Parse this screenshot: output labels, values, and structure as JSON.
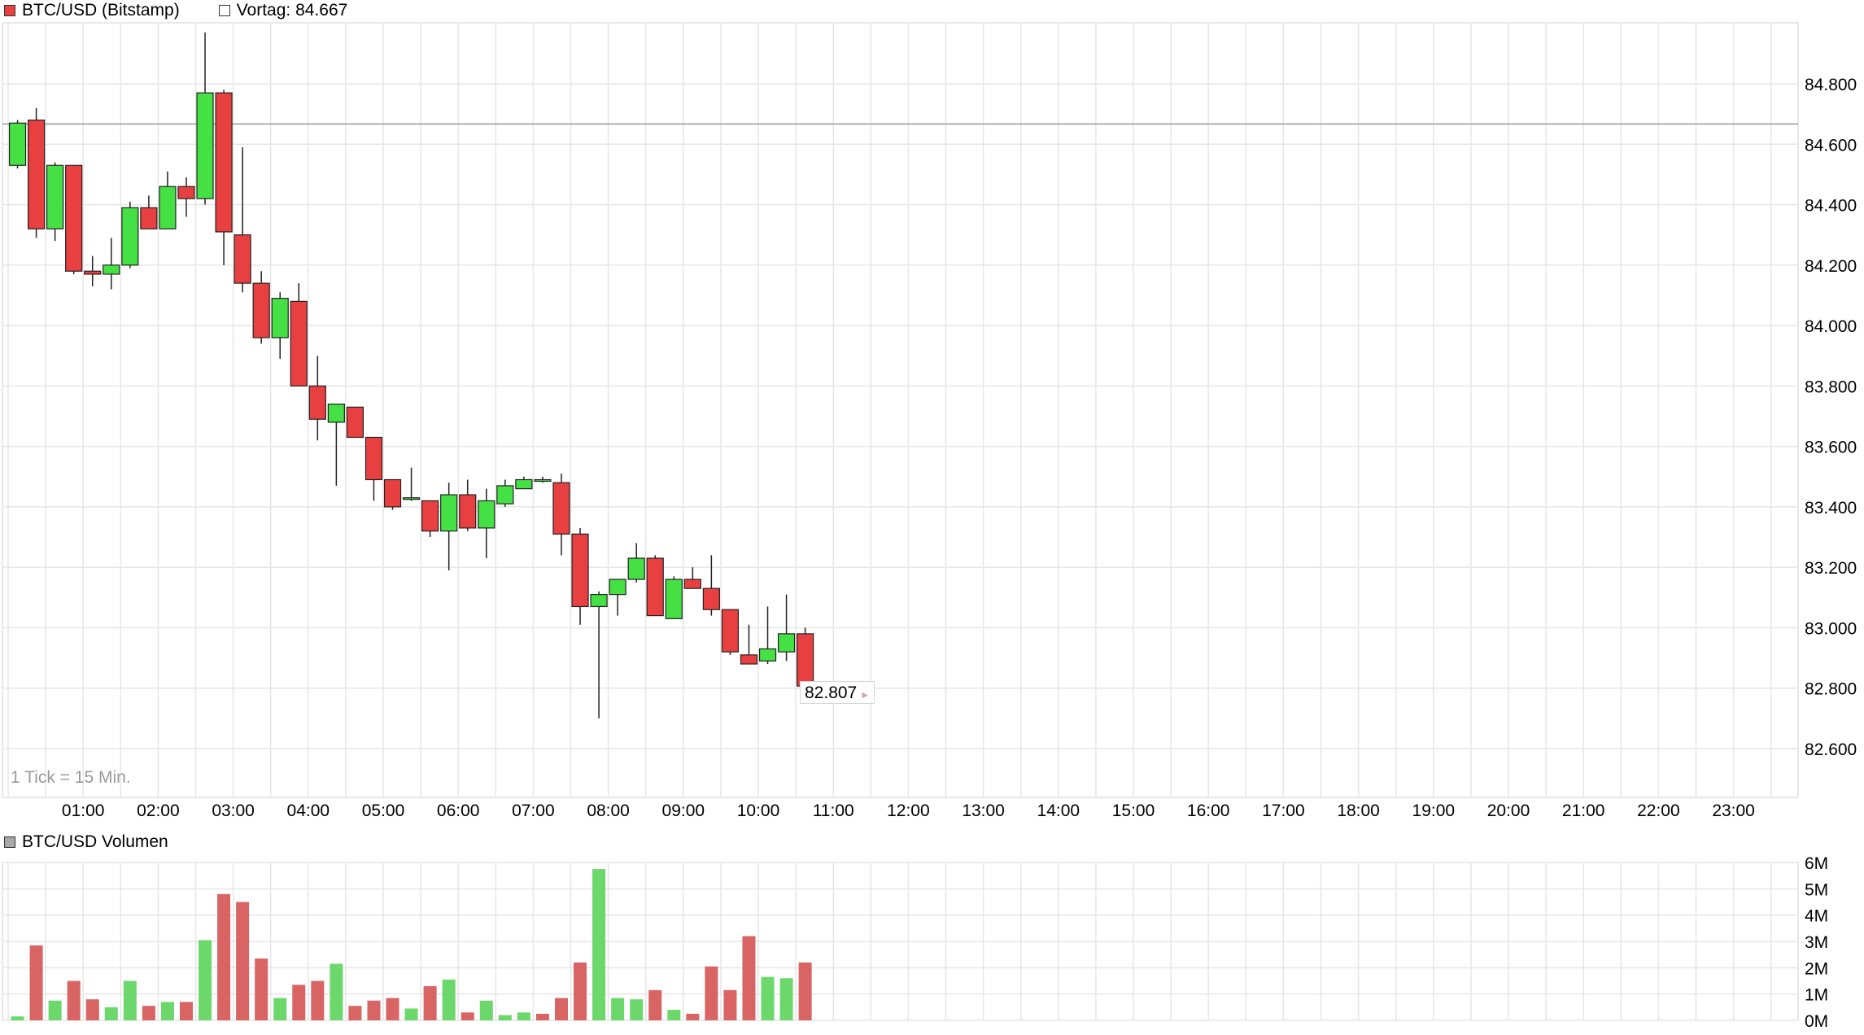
{
  "legend": {
    "series_label": "BTC/USD (Bitstamp)",
    "series_color": "#e84040",
    "prev_close_label": "Vortag: 84.667",
    "volume_label": "BTC/USD Volumen",
    "volume_swatch_color": "#a8a8a8"
  },
  "tick_note": "1 Tick = 15 Min.",
  "last_price_label": "82.807",
  "colors": {
    "up": "#44e044",
    "down": "#e84040",
    "volume_up": "#6cd86c",
    "volume_down": "#d86464",
    "grid": "#e6e6e6",
    "prev_close_line": "#999999"
  },
  "chart_data": [
    {
      "type": "candlestick",
      "name": "BTC/USD (Bitstamp)",
      "interval": "15 Min.",
      "prev_close": 84667,
      "last_price": 82807,
      "ylim": [
        82450,
        84990
      ],
      "y_ticks": [
        82600,
        82800,
        83000,
        83200,
        83400,
        83600,
        83800,
        84000,
        84200,
        84400,
        84600,
        84800
      ],
      "y_tick_labels": [
        "82.600",
        "82.800",
        "83.000",
        "83.200",
        "83.400",
        "83.600",
        "83.800",
        "84.000",
        "84.200",
        "84.400",
        "84.600",
        "84.800"
      ],
      "x_ticks": [
        "01:00",
        "02:00",
        "03:00",
        "04:00",
        "05:00",
        "06:00",
        "07:00",
        "08:00",
        "09:00",
        "10:00",
        "11:00",
        "12:00",
        "13:00",
        "14:00",
        "15:00",
        "16:00",
        "17:00",
        "18:00",
        "19:00",
        "20:00",
        "21:00",
        "22:00",
        "23:00"
      ],
      "x_range_hours": [
        0,
        24
      ],
      "grid": true,
      "candles": [
        {
          "t": "00:00",
          "o": 84530,
          "h": 84680,
          "l": 84520,
          "c": 84670
        },
        {
          "t": "00:15",
          "o": 84680,
          "h": 84720,
          "l": 84290,
          "c": 84320
        },
        {
          "t": "00:30",
          "o": 84320,
          "h": 84540,
          "l": 84280,
          "c": 84530
        },
        {
          "t": "00:45",
          "o": 84530,
          "h": 84530,
          "l": 84170,
          "c": 84180
        },
        {
          "t": "01:00",
          "o": 84180,
          "h": 84230,
          "l": 84130,
          "c": 84170
        },
        {
          "t": "01:15",
          "o": 84170,
          "h": 84290,
          "l": 84120,
          "c": 84200
        },
        {
          "t": "01:30",
          "o": 84200,
          "h": 84410,
          "l": 84190,
          "c": 84390
        },
        {
          "t": "01:45",
          "o": 84390,
          "h": 84430,
          "l": 84320,
          "c": 84320
        },
        {
          "t": "02:00",
          "o": 84320,
          "h": 84510,
          "l": 84320,
          "c": 84460
        },
        {
          "t": "02:15",
          "o": 84460,
          "h": 84490,
          "l": 84360,
          "c": 84420
        },
        {
          "t": "02:30",
          "o": 84420,
          "h": 84970,
          "l": 84400,
          "c": 84770
        },
        {
          "t": "02:45",
          "o": 84770,
          "h": 84780,
          "l": 84200,
          "c": 84310
        },
        {
          "t": "03:00",
          "o": 84300,
          "h": 84590,
          "l": 84110,
          "c": 84140
        },
        {
          "t": "03:15",
          "o": 84140,
          "h": 84180,
          "l": 83940,
          "c": 83960
        },
        {
          "t": "03:30",
          "o": 83960,
          "h": 84110,
          "l": 83890,
          "c": 84090
        },
        {
          "t": "03:45",
          "o": 84080,
          "h": 84140,
          "l": 83800,
          "c": 83800
        },
        {
          "t": "04:00",
          "o": 83800,
          "h": 83900,
          "l": 83620,
          "c": 83690
        },
        {
          "t": "04:15",
          "o": 83680,
          "h": 83740,
          "l": 83470,
          "c": 83740
        },
        {
          "t": "04:30",
          "o": 83730,
          "h": 83730,
          "l": 83630,
          "c": 83630
        },
        {
          "t": "04:45",
          "o": 83630,
          "h": 83630,
          "l": 83420,
          "c": 83490
        },
        {
          "t": "05:00",
          "o": 83490,
          "h": 83490,
          "l": 83390,
          "c": 83400
        },
        {
          "t": "05:15",
          "o": 83430,
          "h": 83530,
          "l": 83420,
          "c": 83430
        },
        {
          "t": "05:30",
          "o": 83420,
          "h": 83420,
          "l": 83300,
          "c": 83320
        },
        {
          "t": "05:45",
          "o": 83320,
          "h": 83480,
          "l": 83190,
          "c": 83440
        },
        {
          "t": "06:00",
          "o": 83440,
          "h": 83490,
          "l": 83320,
          "c": 83330
        },
        {
          "t": "06:15",
          "o": 83330,
          "h": 83460,
          "l": 83230,
          "c": 83420
        },
        {
          "t": "06:30",
          "o": 83410,
          "h": 83490,
          "l": 83400,
          "c": 83470
        },
        {
          "t": "06:45",
          "o": 83460,
          "h": 83500,
          "l": 83460,
          "c": 83490
        },
        {
          "t": "07:00",
          "o": 83490,
          "h": 83500,
          "l": 83480,
          "c": 83490
        },
        {
          "t": "07:15",
          "o": 83480,
          "h": 83510,
          "l": 83240,
          "c": 83310
        },
        {
          "t": "07:30",
          "o": 83310,
          "h": 83330,
          "l": 83010,
          "c": 83070
        },
        {
          "t": "07:45",
          "o": 83070,
          "h": 83120,
          "l": 82700,
          "c": 83110
        },
        {
          "t": "08:00",
          "o": 83110,
          "h": 83160,
          "l": 83040,
          "c": 83160
        },
        {
          "t": "08:15",
          "o": 83160,
          "h": 83280,
          "l": 83150,
          "c": 83230
        },
        {
          "t": "08:30",
          "o": 83230,
          "h": 83240,
          "l": 83040,
          "c": 83040
        },
        {
          "t": "08:45",
          "o": 83030,
          "h": 83170,
          "l": 83030,
          "c": 83160
        },
        {
          "t": "09:00",
          "o": 83160,
          "h": 83200,
          "l": 83130,
          "c": 83130
        },
        {
          "t": "09:15",
          "o": 83130,
          "h": 83240,
          "l": 83040,
          "c": 83060
        },
        {
          "t": "09:30",
          "o": 83060,
          "h": 83060,
          "l": 82910,
          "c": 82920
        },
        {
          "t": "09:45",
          "o": 82910,
          "h": 83010,
          "l": 82880,
          "c": 82880
        },
        {
          "t": "10:00",
          "o": 82890,
          "h": 83070,
          "l": 82880,
          "c": 82930
        },
        {
          "t": "10:15",
          "o": 82920,
          "h": 83110,
          "l": 82890,
          "c": 82980
        },
        {
          "t": "10:30",
          "o": 82980,
          "h": 83000,
          "l": 82780,
          "c": 82807
        }
      ]
    },
    {
      "type": "bar",
      "name": "BTC/USD Volumen",
      "unit": "M",
      "ylim": [
        0,
        6
      ],
      "y_ticks": [
        0,
        1,
        2,
        3,
        4,
        5,
        6
      ],
      "y_tick_labels": [
        "0M",
        "1M",
        "2M",
        "3M",
        "4M",
        "5M",
        "6M"
      ],
      "x_ticks": [
        "01:00",
        "02:00",
        "03:00",
        "04:00",
        "05:00",
        "06:00",
        "07:00",
        "08:00",
        "09:00",
        "10:00",
        "11:00",
        "12:00",
        "13:00",
        "14:00",
        "15:00",
        "16:00",
        "17:00",
        "18:00",
        "19:00",
        "20:00",
        "21:00",
        "22:00",
        "23:00"
      ],
      "grid": true,
      "values": [
        0.15,
        2.85,
        0.75,
        1.5,
        0.8,
        0.5,
        1.5,
        0.55,
        0.7,
        0.7,
        3.05,
        4.8,
        4.5,
        2.35,
        0.85,
        1.35,
        1.5,
        2.15,
        0.55,
        0.75,
        0.85,
        0.45,
        1.3,
        1.55,
        0.3,
        0.75,
        0.2,
        0.3,
        0.25,
        0.85,
        2.2,
        5.75,
        0.85,
        0.8,
        1.15,
        0.4,
        0.25,
        2.05,
        1.15,
        3.2,
        1.65,
        1.6,
        2.2
      ],
      "directions": [
        "up",
        "down",
        "up",
        "down",
        "down",
        "up",
        "up",
        "down",
        "up",
        "down",
        "up",
        "down",
        "down",
        "down",
        "up",
        "down",
        "down",
        "up",
        "down",
        "down",
        "down",
        "up",
        "down",
        "up",
        "down",
        "up",
        "up",
        "up",
        "down",
        "down",
        "down",
        "up",
        "up",
        "up",
        "down",
        "up",
        "down",
        "down",
        "down",
        "down",
        "up",
        "up",
        "down"
      ]
    }
  ]
}
